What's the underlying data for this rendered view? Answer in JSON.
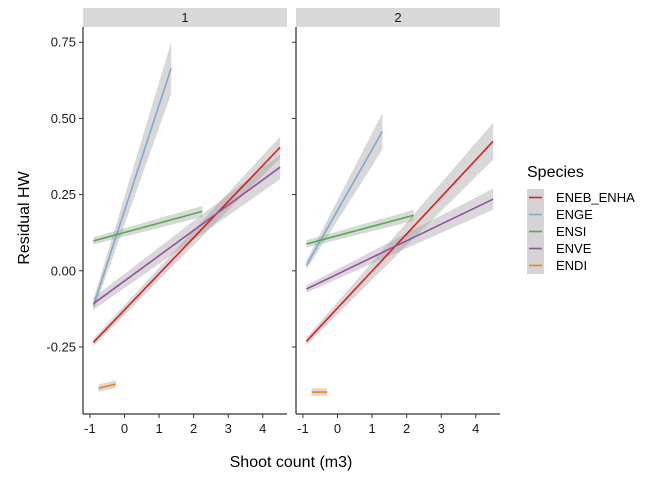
{
  "chart_data": {
    "type": "line",
    "xlabel": "Shoot count (m3)",
    "ylabel": "Residual HW",
    "xlim": [
      -1.2,
      4.7
    ],
    "ylim": [
      -0.47,
      0.8
    ],
    "x_ticks": [
      -1,
      0,
      1,
      2,
      3,
      4
    ],
    "x_tick_labels": [
      "-1",
      "0",
      "1",
      "2",
      "3",
      "4"
    ],
    "y_ticks": [
      -0.25,
      0.0,
      0.25,
      0.5,
      0.75
    ],
    "y_tick_labels": [
      "-0.25",
      "0.00",
      "0.25",
      "0.50",
      "0.75"
    ],
    "grid": false,
    "legend": {
      "title": "Species",
      "position": "right",
      "entries": [
        "ENEB_ENHA",
        "ENGE",
        "ENSI",
        "ENVE",
        "ENDI"
      ]
    },
    "panels": [
      {
        "label": "1",
        "series": [
          {
            "name": "ENEB_ENHA",
            "color": "#e41a1c",
            "x": [
              -0.9,
              4.5
            ],
            "y": [
              -0.235,
              0.405
            ],
            "se": [
              0.012,
              0.035
            ]
          },
          {
            "name": "ENGE",
            "color": "#7fa9d3",
            "x": [
              -0.9,
              1.35
            ],
            "y": [
              -0.115,
              0.665
            ],
            "se": [
              0.02,
              0.085
            ]
          },
          {
            "name": "ENSI",
            "color": "#4daf4a",
            "x": [
              -0.9,
              2.25
            ],
            "y": [
              0.098,
              0.195
            ],
            "se": [
              0.012,
              0.018
            ]
          },
          {
            "name": "ENVE",
            "color": "#984ea3",
            "x": [
              -0.9,
              4.5
            ],
            "y": [
              -0.108,
              0.34
            ],
            "se": [
              0.02,
              0.04
            ]
          },
          {
            "name": "ENDI",
            "color": "#ff7f00",
            "x": [
              -0.75,
              -0.25
            ],
            "y": [
              -0.385,
              -0.372
            ],
            "se": [
              0.012,
              0.012
            ]
          }
        ]
      },
      {
        "label": "2",
        "series": [
          {
            "name": "ENEB_ENHA",
            "color": "#e41a1c",
            "x": [
              -0.9,
              4.5
            ],
            "y": [
              -0.232,
              0.425
            ],
            "se": [
              0.012,
              0.06
            ]
          },
          {
            "name": "ENGE",
            "color": "#7fa9d3",
            "x": [
              -0.9,
              1.3
            ],
            "y": [
              0.018,
              0.458
            ],
            "se": [
              0.015,
              0.06
            ]
          },
          {
            "name": "ENSI",
            "color": "#4daf4a",
            "x": [
              -0.9,
              2.2
            ],
            "y": [
              0.088,
              0.182
            ],
            "se": [
              0.012,
              0.018
            ]
          },
          {
            "name": "ENVE",
            "color": "#984ea3",
            "x": [
              -0.9,
              4.5
            ],
            "y": [
              -0.06,
              0.235
            ],
            "se": [
              0.012,
              0.035
            ]
          },
          {
            "name": "ENDI",
            "color": "#ff7f00",
            "x": [
              -0.75,
              -0.3
            ],
            "y": [
              -0.398,
              -0.398
            ],
            "se": [
              0.012,
              0.012
            ]
          }
        ]
      }
    ]
  }
}
